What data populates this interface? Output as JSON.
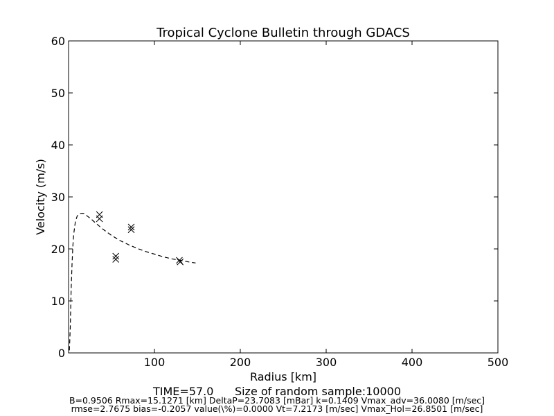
{
  "chart_data": {
    "type": "scatter",
    "title": "Tropical Cyclone Bulletin through GDACS",
    "xlabel": "Radius [km]",
    "ylabel": "Velocity (m/s)",
    "xlim": [
      0,
      500
    ],
    "ylim": [
      0,
      60
    ],
    "x_ticks": [
      100,
      200,
      300,
      400,
      500
    ],
    "x_tick_labels": [
      "100",
      "200",
      "300",
      "400",
      "500"
    ],
    "y_ticks": [
      0,
      10,
      20,
      30,
      40,
      50,
      60
    ],
    "y_tick_labels": [
      "0",
      "10",
      "20",
      "30",
      "40",
      "50",
      "60"
    ],
    "grid": false,
    "series": [
      {
        "style": "dashed-line",
        "color": "#000000",
        "points": [
          [
            1,
            0.5
          ],
          [
            2,
            5
          ],
          [
            3,
            12
          ],
          [
            4,
            17
          ],
          [
            5,
            20.5
          ],
          [
            6,
            22.8
          ],
          [
            8,
            25.3
          ],
          [
            10,
            26.3
          ],
          [
            12,
            26.7
          ],
          [
            15,
            26.85
          ],
          [
            18,
            26.8
          ],
          [
            22,
            26.3
          ],
          [
            26,
            25.8
          ],
          [
            30,
            25.2
          ],
          [
            35,
            24.5
          ],
          [
            40,
            23.8
          ],
          [
            45,
            23.2
          ],
          [
            50,
            22.6
          ],
          [
            60,
            21.6
          ],
          [
            70,
            20.8
          ],
          [
            80,
            20.1
          ],
          [
            90,
            19.5
          ],
          [
            100,
            19.0
          ],
          [
            110,
            18.5
          ],
          [
            120,
            18.1
          ],
          [
            130,
            17.8
          ],
          [
            140,
            17.5
          ],
          [
            148,
            17.3
          ]
        ]
      },
      {
        "style": "x-markers",
        "color": "#000000",
        "points": [
          [
            36,
            26.6
          ],
          [
            36,
            25.8
          ],
          [
            55,
            18.6
          ],
          [
            55,
            18.0
          ],
          [
            73,
            24.2
          ],
          [
            73,
            23.7
          ],
          [
            129,
            17.8
          ],
          [
            130,
            17.5
          ]
        ]
      }
    ]
  },
  "footer": {
    "line1": "TIME=57.0      Size of random sample:10000",
    "line2": "B=0.9506 Rmax=15.1271 [km]  DeltaP=23.7083 [mBar] k=0.1409 Vmax_adv=36.0080 [m/sec]",
    "line3": "rmse=2.7675 bias=-0.2057 value(\\%)=0.0000 Vt=7.2173 [m/sec] Vmax_Hol=26.8501 [m/sec]"
  }
}
